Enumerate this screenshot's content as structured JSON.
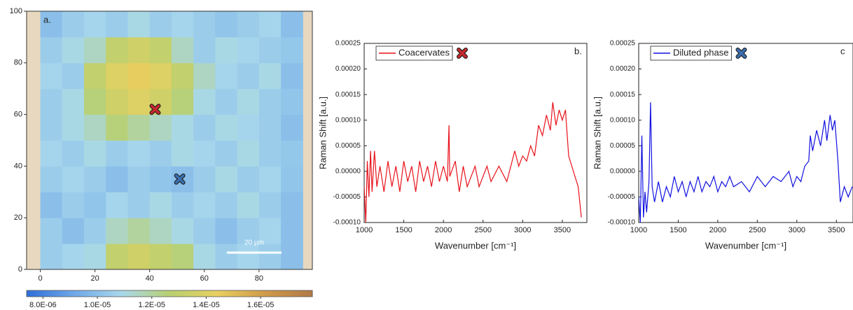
{
  "chart_data": [
    {
      "type": "heatmap",
      "panel_label": "a.",
      "xlim": [
        -5,
        99.5
      ],
      "ylim": [
        0,
        100
      ],
      "xticks": [
        0,
        20,
        40,
        60,
        80
      ],
      "yticks": [
        0,
        20,
        40,
        60,
        80,
        100
      ],
      "x": [
        4,
        12,
        20,
        28,
        36,
        44,
        52,
        60,
        68,
        76,
        84,
        92
      ],
      "y": [
        5,
        15,
        25,
        35,
        45,
        55,
        65,
        75,
        85,
        95
      ],
      "z": [
        [
          1.05e-05,
          1.08e-05,
          1.1e-05,
          1.3e-05,
          1.35e-05,
          1.3e-05,
          1.25e-05,
          1.1e-05,
          1.05e-05,
          1.08e-05,
          1.05e-05,
          1e-05
        ],
        [
          1.05e-05,
          1e-05,
          1.05e-05,
          1.15e-05,
          1.2e-05,
          1.15e-05,
          1.1e-05,
          1.05e-05,
          1e-05,
          1.05e-05,
          1.08e-05,
          1e-05
        ],
        [
          1e-05,
          1.05e-05,
          1.02e-05,
          1.08e-05,
          1.05e-05,
          1.1e-05,
          1.05e-05,
          1.08e-05,
          1.05e-05,
          1.1e-05,
          1.05e-05,
          1e-05
        ],
        [
          1.05e-05,
          1.08e-05,
          1.05e-05,
          1e-05,
          1.05e-05,
          1.02e-05,
          1e-05,
          1.05e-05,
          1.1e-05,
          1.05e-05,
          1.08e-05,
          1.02e-05
        ],
        [
          1.08e-05,
          1.05e-05,
          1.1e-05,
          1.05e-05,
          1.08e-05,
          1.05e-05,
          1.1e-05,
          1.08e-05,
          1.05e-05,
          1.1e-05,
          1.05e-05,
          1.03e-05
        ],
        [
          1.05e-05,
          1.1e-05,
          1.15e-05,
          1.25e-05,
          1.2e-05,
          1.15e-05,
          1.1e-05,
          1.05e-05,
          1.1e-05,
          1.08e-05,
          1.05e-05,
          1e-05
        ],
        [
          1.05e-05,
          1.1e-05,
          1.25e-05,
          1.35e-05,
          1.4e-05,
          1.35e-05,
          1.25e-05,
          1.1e-05,
          1.05e-05,
          1.1e-05,
          1.05e-05,
          1.02e-05
        ],
        [
          1.08e-05,
          1.05e-05,
          1.3e-05,
          1.4e-05,
          1.45e-05,
          1.4e-05,
          1.3e-05,
          1.15e-05,
          1.08e-05,
          1.05e-05,
          1.1e-05,
          1e-05
        ],
        [
          1.05e-05,
          1.1e-05,
          1.15e-05,
          1.3e-05,
          1.35e-05,
          1.3e-05,
          1.15e-05,
          1.05e-05,
          1.1e-05,
          1.08e-05,
          1.05e-05,
          1.03e-05
        ],
        [
          1e-05,
          1.05e-05,
          1.08e-05,
          1.05e-05,
          1.1e-05,
          1.05e-05,
          1.08e-05,
          1.05e-05,
          1.02e-05,
          1.05e-05,
          1.08e-05,
          1e-05
        ]
      ],
      "colormap": [
        "#2f6fd8",
        "#6fa8e8",
        "#a8d8ec",
        "#b8d070",
        "#e8d060",
        "#d09a4a",
        "#b07a48"
      ],
      "colorbar": {
        "clim": [
          7.4e-06,
          1.79e-05
        ],
        "ticks": [
          {
            "value": 8e-06,
            "label": "8.0E-06"
          },
          {
            "value": 1e-05,
            "label": "1.0E-05"
          },
          {
            "value": 1.2e-05,
            "label": "1.2E-05"
          },
          {
            "value": 1.4e-05,
            "label": "1.4E-05"
          },
          {
            "value": 1.6e-05,
            "label": "1.6E-05"
          }
        ]
      },
      "markers": [
        {
          "x": 42,
          "y": 62,
          "color": "#c8282d"
        },
        {
          "x": 51,
          "y": 35,
          "color": "#3b6fb0"
        }
      ],
      "scale_bar": {
        "label": "20 µm",
        "length": 20
      }
    },
    {
      "type": "line",
      "panel_label": "b.",
      "x_label": "Wavenumber [cm⁻¹]",
      "y_label": "Raman Shift [a.u.]",
      "xlim": [
        1000,
        3810
      ],
      "ylim": [
        -0.0001,
        0.00025
      ],
      "xticks": [
        1000,
        1500,
        2000,
        2500,
        3000,
        3500
      ],
      "yticks": [
        {
          "value": -0.0001,
          "label": "-0.00010"
        },
        {
          "value": -5e-05,
          "label": "-0.00005"
        },
        {
          "value": 0,
          "label": "0.00000"
        },
        {
          "value": 5e-05,
          "label": "0.00005"
        },
        {
          "value": 0.0001,
          "label": "0.00010"
        },
        {
          "value": 0.00015,
          "label": "0.00015"
        },
        {
          "value": 0.0002,
          "label": "0.00020"
        },
        {
          "value": 0.00025,
          "label": "0.00025"
        }
      ],
      "x": [
        1000,
        1020,
        1040,
        1060,
        1080,
        1100,
        1130,
        1160,
        1200,
        1250,
        1300,
        1350,
        1400,
        1450,
        1500,
        1550,
        1600,
        1650,
        1700,
        1750,
        1800,
        1850,
        1900,
        1950,
        2000,
        2050,
        2070,
        2080,
        2150,
        2200,
        2250,
        2300,
        2400,
        2450,
        2550,
        2600,
        2700,
        2800,
        2850,
        2900,
        2950,
        3000,
        3050,
        3100,
        3150,
        3200,
        3250,
        3300,
        3350,
        3380,
        3420,
        3460,
        3500,
        3540,
        3580,
        3620,
        3660,
        3700,
        3740
      ],
      "series": [
        {
          "name": "Coacervates",
          "color": "#e8121a",
          "marker_color": "#c8282d",
          "values": [
            -3e-05,
            -0.0001,
            2e-05,
            -5e-05,
            4e-05,
            -4e-05,
            4e-05,
            -3e-05,
            1e-05,
            -4e-05,
            2e-05,
            -3e-05,
            1e-05,
            -4e-05,
            2e-05,
            -2e-05,
            1e-05,
            -4e-05,
            2e-05,
            -2e-05,
            1e-05,
            -3e-05,
            2e-05,
            -2e-05,
            1e-05,
            -2e-05,
            9e-05,
            -1e-05,
            2e-05,
            -4e-05,
            1e-05,
            -3e-05,
            1e-05,
            -3e-05,
            1e-05,
            -2e-05,
            1e-05,
            -2e-05,
            1e-05,
            4e-05,
            1e-05,
            3e-05,
            2e-05,
            5e-05,
            3e-05,
            9e-05,
            7e-05,
            0.00011,
            8e-05,
            0.000135,
            9e-05,
            0.00012,
            0.0001,
            0.00012,
            3e-05,
            1e-05,
            -1e-05,
            -3e-05,
            -9e-05
          ]
        }
      ]
    },
    {
      "type": "line",
      "panel_label": "c",
      "x_label": "Wavenumber [cm⁻¹]",
      "y_label": "Raman Shift [a.u.]",
      "xlim": [
        1000,
        3710
      ],
      "ylim": [
        -0.0001,
        0.00025
      ],
      "xticks": [
        1000,
        1500,
        2000,
        2500,
        3000,
        3500
      ],
      "yticks": [
        {
          "value": -0.0001,
          "label": "-0.00010"
        },
        {
          "value": -5e-05,
          "label": "-0.00005"
        },
        {
          "value": 0,
          "label": "0.00000"
        },
        {
          "value": 5e-05,
          "label": "0.00005"
        },
        {
          "value": 0.0001,
          "label": "0.00010"
        },
        {
          "value": 0.00015,
          "label": "0.00015"
        },
        {
          "value": 0.0002,
          "label": "0.00020"
        },
        {
          "value": 0.00025,
          "label": "0.00025"
        }
      ],
      "x": [
        1000,
        1020,
        1040,
        1060,
        1080,
        1100,
        1130,
        1150,
        1170,
        1200,
        1250,
        1300,
        1350,
        1400,
        1450,
        1500,
        1550,
        1600,
        1650,
        1700,
        1750,
        1800,
        1850,
        1900,
        1950,
        2000,
        2050,
        2100,
        2150,
        2200,
        2300,
        2400,
        2500,
        2600,
        2700,
        2800,
        2900,
        2950,
        3000,
        3050,
        3100,
        3150,
        3170,
        3200,
        3250,
        3300,
        3350,
        3380,
        3420,
        3450,
        3480,
        3520,
        3550,
        3600,
        3650,
        3700
      ],
      "series": [
        {
          "name": "Diluted phase",
          "color": "#1010e0",
          "marker_color": "#3b6fb0",
          "values": [
            -5e-05,
            -0.0001,
            7e-05,
            -9e-05,
            -4e-05,
            -8e-05,
            -2e-05,
            0.000135,
            -3e-05,
            -6e-05,
            -2e-05,
            -6e-05,
            -3e-05,
            -5e-05,
            -1e-05,
            -4e-05,
            -2e-05,
            -5e-05,
            -2e-05,
            -4e-05,
            -1e-05,
            -4e-05,
            -2e-05,
            -3e-05,
            -1e-05,
            -4e-05,
            -2e-05,
            -3e-05,
            -1e-05,
            -3e-05,
            -2e-05,
            -4e-05,
            -1e-05,
            -3e-05,
            -1e-05,
            -2e-05,
            0,
            -3e-05,
            -1e-05,
            -2e-05,
            1e-05,
            2e-05,
            7e-05,
            4e-05,
            8e-05,
            5e-05,
            0.0001,
            6e-05,
            0.00011,
            8e-05,
            0.0001,
            2e-05,
            -6e-05,
            -3e-05,
            -5e-05,
            -3e-05
          ]
        }
      ]
    }
  ]
}
